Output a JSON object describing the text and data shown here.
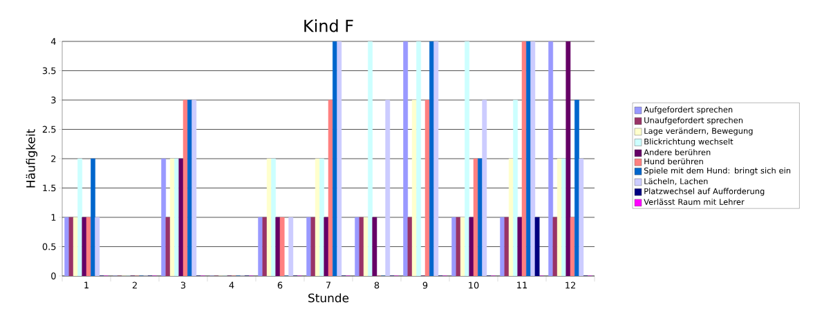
{
  "chart_data": {
    "type": "bar",
    "title": "Kind F",
    "xlabel": "Stunde",
    "ylabel": "Häufigkeit",
    "categories": [
      "1",
      "2",
      "3",
      "4",
      "6",
      "7",
      "8",
      "9",
      "10",
      "11",
      "12"
    ],
    "ylim": [
      0,
      4
    ],
    "yticks": [
      0,
      0.5,
      1,
      1.5,
      2,
      2.5,
      3,
      3.5,
      4
    ],
    "grid": "y",
    "legend": "right",
    "series": [
      {
        "name": "Aufgefordert sprechen",
        "color": "#9999ff",
        "values": [
          1,
          0,
          2,
          0,
          1,
          1,
          1,
          4,
          1,
          1,
          4
        ]
      },
      {
        "name": "Unaufgefordert sprechen",
        "color": "#993366",
        "values": [
          1,
          0,
          1,
          0,
          1,
          1,
          1,
          1,
          1,
          1,
          1
        ]
      },
      {
        "name": "Lage verändern, Bewegung",
        "color": "#ffffcc",
        "values": [
          1,
          0,
          2,
          0,
          2,
          2,
          1,
          3,
          1,
          2,
          2
        ]
      },
      {
        "name": "Blickrichtung wechselt",
        "color": "#ccffff",
        "values": [
          2,
          0,
          2,
          0,
          2,
          2,
          4,
          4,
          4,
          3,
          2
        ]
      },
      {
        "name": "Andere berühren",
        "color": "#660066",
        "values": [
          1,
          0,
          2,
          0,
          1,
          1,
          1,
          0,
          1,
          1,
          4
        ]
      },
      {
        "name": "Hund berühren",
        "color": "#ff8080",
        "values": [
          1,
          0,
          3,
          0,
          1,
          3,
          0,
          3,
          2,
          4,
          1
        ]
      },
      {
        "name": "Spiele mit dem Hund: bringt sich ein",
        "color": "#0066cc",
        "values": [
          2,
          0,
          3,
          0,
          0,
          4,
          0,
          4,
          2,
          4,
          3
        ]
      },
      {
        "name": "Lächeln, Lachen",
        "color": "#ccccff",
        "values": [
          1,
          0,
          3,
          0,
          1,
          4,
          3,
          4,
          3,
          4,
          2
        ]
      },
      {
        "name": "Platzwechsel auf Aufforderung",
        "color": "#000080",
        "values": [
          0,
          0,
          0,
          0,
          0,
          0,
          0,
          0,
          0,
          1,
          0
        ]
      },
      {
        "name": "Verlässt Raum mit Lehrer",
        "color": "#ff00ff",
        "values": [
          0,
          0,
          0,
          0,
          0,
          0,
          0,
          0,
          0,
          0,
          0
        ]
      }
    ]
  }
}
